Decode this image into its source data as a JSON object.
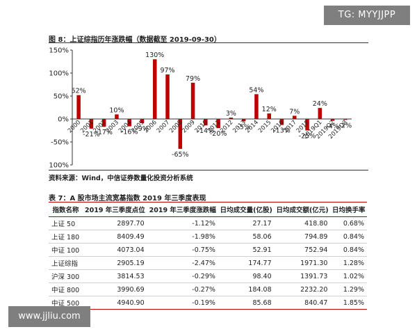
{
  "watermarks": {
    "top": "TG: MYYJJPP",
    "bottom": "www.jjliu.com"
  },
  "figure_title": "图 8：上证综指历年涨跌幅（数据截至 2019-09-30）",
  "source": "资料来源：Wind，中信证券数量化投资分析系统",
  "table_title": "表 7：A 股市场主流宽基指数 2019 年三季度表现",
  "colors": {
    "bar": "#c00000",
    "rule": "#c00000",
    "axis": "#333333"
  },
  "chart_data": {
    "type": "bar",
    "categories": [
      "2000",
      "2001",
      "2002",
      "2003",
      "2004",
      "2005",
      "2006",
      "2007",
      "2008",
      "2009",
      "2010",
      "2011",
      "2012",
      "2013",
      "2014",
      "2015",
      "2016",
      "2017",
      "2018",
      "2019Q1",
      "2019Q2",
      "2019Q3"
    ],
    "values": [
      52,
      -21,
      -17,
      10,
      -16,
      -9,
      130,
      97,
      -65,
      79,
      -14,
      -20,
      3,
      -5,
      54,
      12,
      -13,
      7,
      -25,
      24,
      -4,
      -2
    ],
    "value_labels": [
      "52%",
      "-21%",
      "-17%",
      "10%",
      "-16%",
      "-9%",
      "130%",
      "97%",
      "-65%",
      "79%",
      "-14%",
      "-20%",
      "3%",
      "-5%",
      "54%",
      "12%",
      "-13%",
      "7%",
      "-25%",
      "24%",
      "-4%",
      "-2%"
    ],
    "ylim": [
      -100,
      150
    ],
    "yticks": [
      150,
      100,
      50,
      0,
      -50,
      -100
    ],
    "ytick_labels": [
      "150%",
      "100%",
      "50%",
      "0%",
      "-50%",
      "-100%"
    ],
    "grid": false,
    "title": "",
    "xlabel": "",
    "ylabel": ""
  },
  "table": {
    "headers": [
      "指数名称",
      "2019 年三季度点位",
      "2019 年三季度涨跌幅",
      "日均成交量(亿股)",
      "日均成交额(亿元)",
      "日均换手率"
    ],
    "rows": [
      [
        "上证 50",
        "2897.70",
        "-1.12%",
        "27.17",
        "418.80",
        "0.68%"
      ],
      [
        "上证 180",
        "8409.49",
        "-1.98%",
        "58.06",
        "794.89",
        "0.84%"
      ],
      [
        "中证 100",
        "4073.04",
        "-0.75%",
        "52.91",
        "752.94",
        "0.84%"
      ],
      [
        "上证综指",
        "2905.19",
        "-2.47%",
        "174.77",
        "1971.30",
        "1.28%"
      ],
      [
        "沪深 300",
        "3814.53",
        "-0.29%",
        "98.40",
        "1391.73",
        "1.02%"
      ],
      [
        "中证 800",
        "3990.69",
        "-0.27%",
        "184.08",
        "2232.20",
        "1.29%"
      ],
      [
        "中证 500",
        "4940.90",
        "-0.19%",
        "85.68",
        "840.47",
        "1.85%"
      ]
    ]
  }
}
